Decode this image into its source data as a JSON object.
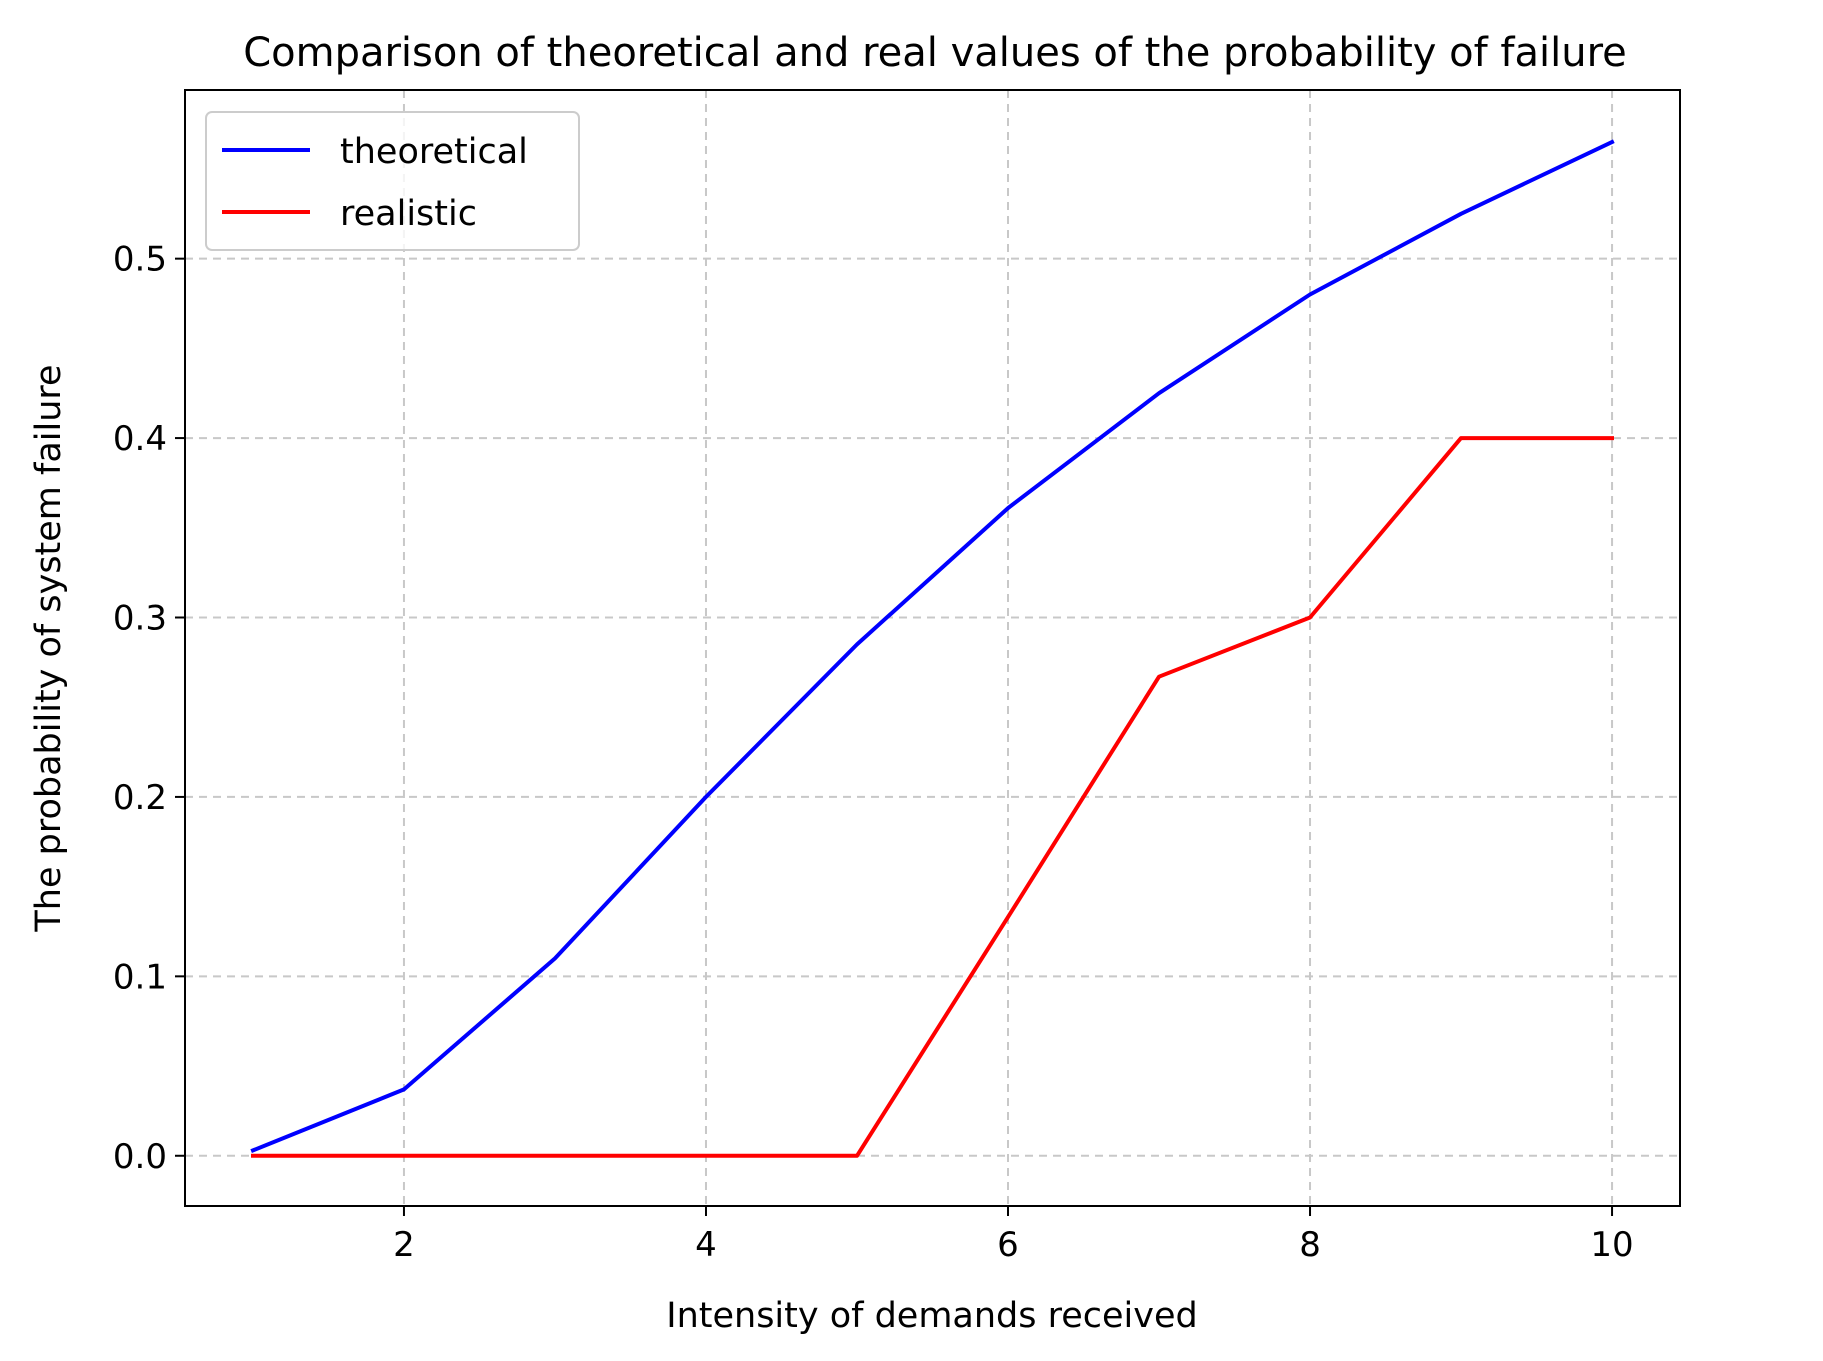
{
  "chart_data": {
    "type": "line",
    "title": "Comparison of theoretical and real values of the probability of failure",
    "xlabel": "Intensity of demands received",
    "ylabel": "The probability of system failure",
    "xlim": [
      0.55,
      10.45
    ],
    "ylim": [
      -0.028,
      0.594
    ],
    "xticks": [
      2,
      4,
      6,
      8,
      10
    ],
    "yticks": [
      0.0,
      0.1,
      0.2,
      0.3,
      0.4,
      0.5
    ],
    "xtick_labels": [
      "2",
      "4",
      "6",
      "8",
      "10"
    ],
    "ytick_labels": [
      "0.0",
      "0.1",
      "0.2",
      "0.3",
      "0.4",
      "0.5"
    ],
    "grid": true,
    "legend_position": "upper-left",
    "x": [
      1,
      2,
      3,
      4,
      5,
      6,
      7,
      8,
      9,
      10
    ],
    "series": [
      {
        "name": "theoretical",
        "color": "#0000ff",
        "values": [
          0.003,
          0.037,
          0.11,
          0.2,
          0.285,
          0.361,
          0.425,
          0.48,
          0.525,
          0.565
        ]
      },
      {
        "name": "realistic",
        "color": "#ff0000",
        "values": [
          0.0,
          0.0,
          0.0,
          0.0,
          0.0,
          0.133,
          0.267,
          0.3,
          0.4,
          0.4
        ]
      }
    ]
  }
}
